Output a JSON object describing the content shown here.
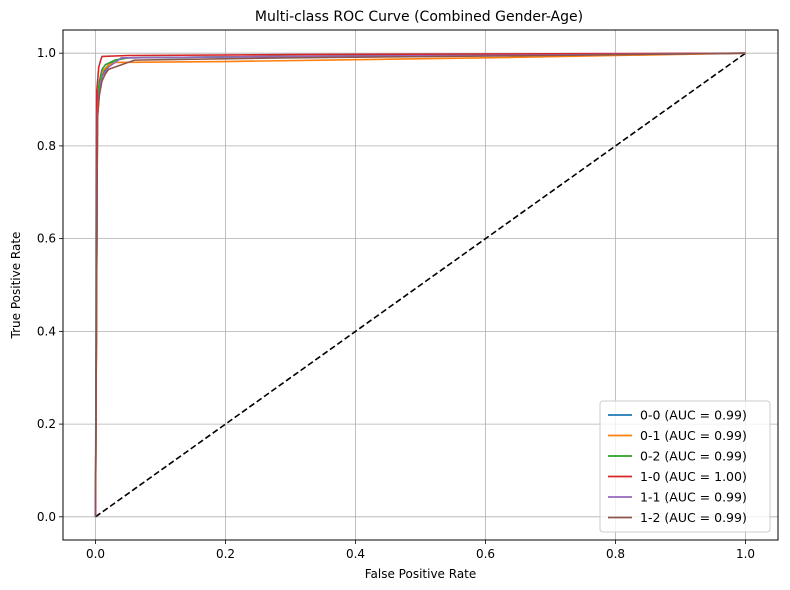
{
  "chart_data": {
    "type": "line",
    "title": "Multi-class ROC Curve (Combined Gender-Age)",
    "xlabel": "False Positive Rate",
    "ylabel": "True Positive Rate",
    "xlim": [
      -0.05,
      1.05
    ],
    "ylim": [
      -0.05,
      1.05
    ],
    "xticks": [
      0.0,
      0.2,
      0.4,
      0.6,
      0.8,
      1.0
    ],
    "yticks": [
      0.0,
      0.2,
      0.4,
      0.6,
      0.8,
      1.0
    ],
    "xtick_labels": [
      "0.0",
      "0.2",
      "0.4",
      "0.6",
      "0.8",
      "1.0"
    ],
    "ytick_labels": [
      "0.0",
      "0.2",
      "0.4",
      "0.6",
      "0.8",
      "1.0"
    ],
    "grid": true,
    "legend_position": "lower-right",
    "series": [
      {
        "name": "0-0 (AUC = 0.99)",
        "color": "#1f77b4",
        "x": [
          0,
          0.003,
          0.006,
          0.01,
          0.015,
          0.02,
          0.03,
          0.05,
          0.2,
          0.5,
          0.8,
          1.0
        ],
        "y": [
          0,
          0.86,
          0.92,
          0.95,
          0.965,
          0.975,
          0.985,
          0.99,
          0.992,
          0.995,
          0.998,
          1.0
        ]
      },
      {
        "name": "0-1 (AUC = 0.99)",
        "color": "#ff7f0e",
        "x": [
          0,
          0.003,
          0.006,
          0.01,
          0.02,
          0.03,
          0.2,
          0.4,
          0.6,
          0.8,
          1.0
        ],
        "y": [
          0,
          0.88,
          0.93,
          0.96,
          0.975,
          0.98,
          0.982,
          0.986,
          0.99,
          0.995,
          1.0
        ]
      },
      {
        "name": "0-2 (AUC = 0.99)",
        "color": "#2ca02c",
        "x": [
          0,
          0.003,
          0.006,
          0.01,
          0.015,
          0.03,
          0.05,
          0.3,
          0.6,
          1.0
        ],
        "y": [
          0,
          0.9,
          0.94,
          0.965,
          0.975,
          0.985,
          0.99,
          0.993,
          0.996,
          1.0
        ]
      },
      {
        "name": "1-0 (AUC = 1.00)",
        "color": "#d62728",
        "x": [
          0,
          0.002,
          0.005,
          0.008,
          0.01,
          0.05,
          0.3,
          1.0
        ],
        "y": [
          0,
          0.92,
          0.97,
          0.985,
          0.993,
          0.995,
          0.997,
          1.0
        ]
      },
      {
        "name": "1-1 (AUC = 0.99)",
        "color": "#9467bd",
        "x": [
          0,
          0.003,
          0.006,
          0.01,
          0.02,
          0.04,
          0.3,
          0.7,
          1.0
        ],
        "y": [
          0,
          0.87,
          0.92,
          0.95,
          0.97,
          0.99,
          0.993,
          0.996,
          1.0
        ]
      },
      {
        "name": "1-2 (AUC = 0.99)",
        "color": "#8c564b",
        "x": [
          0,
          0.003,
          0.006,
          0.01,
          0.015,
          0.02,
          0.04,
          0.06,
          0.3,
          0.7,
          1.0
        ],
        "y": [
          0,
          0.86,
          0.91,
          0.94,
          0.955,
          0.965,
          0.975,
          0.985,
          0.99,
          0.995,
          1.0
        ]
      }
    ],
    "reference_line": {
      "color": "#000000",
      "style": "dashed",
      "x": [
        0,
        1
      ],
      "y": [
        0,
        1
      ]
    }
  }
}
